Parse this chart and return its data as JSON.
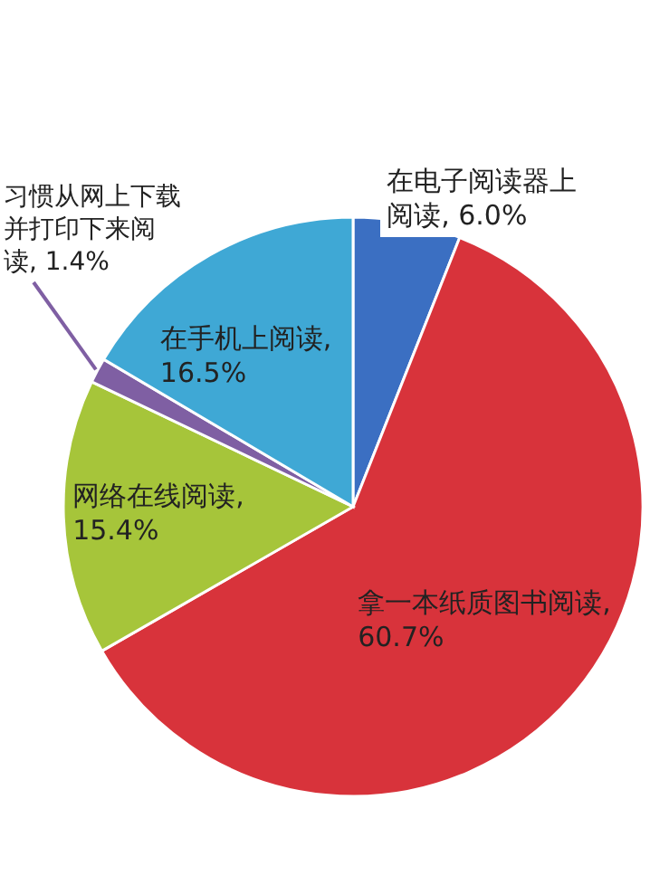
{
  "chart_data": {
    "type": "pie",
    "categories": [
      "在电子阅读器上阅读",
      "拿一本纸质图书阅读",
      "网络在线阅读",
      "习惯从网上下载并打印下来阅读",
      "在手机上阅读"
    ],
    "values": [
      6.0,
      60.7,
      15.4,
      1.4,
      16.5
    ],
    "value_labels": [
      ", 6.0%",
      ", 60.7%",
      ", 15.4%",
      ", 1.4%",
      ", 16.5%"
    ],
    "colors": [
      "#3b6fc2",
      "#d8333b",
      "#a6c53a",
      "#7f5fa3",
      "#3fa8d5"
    ]
  }
}
